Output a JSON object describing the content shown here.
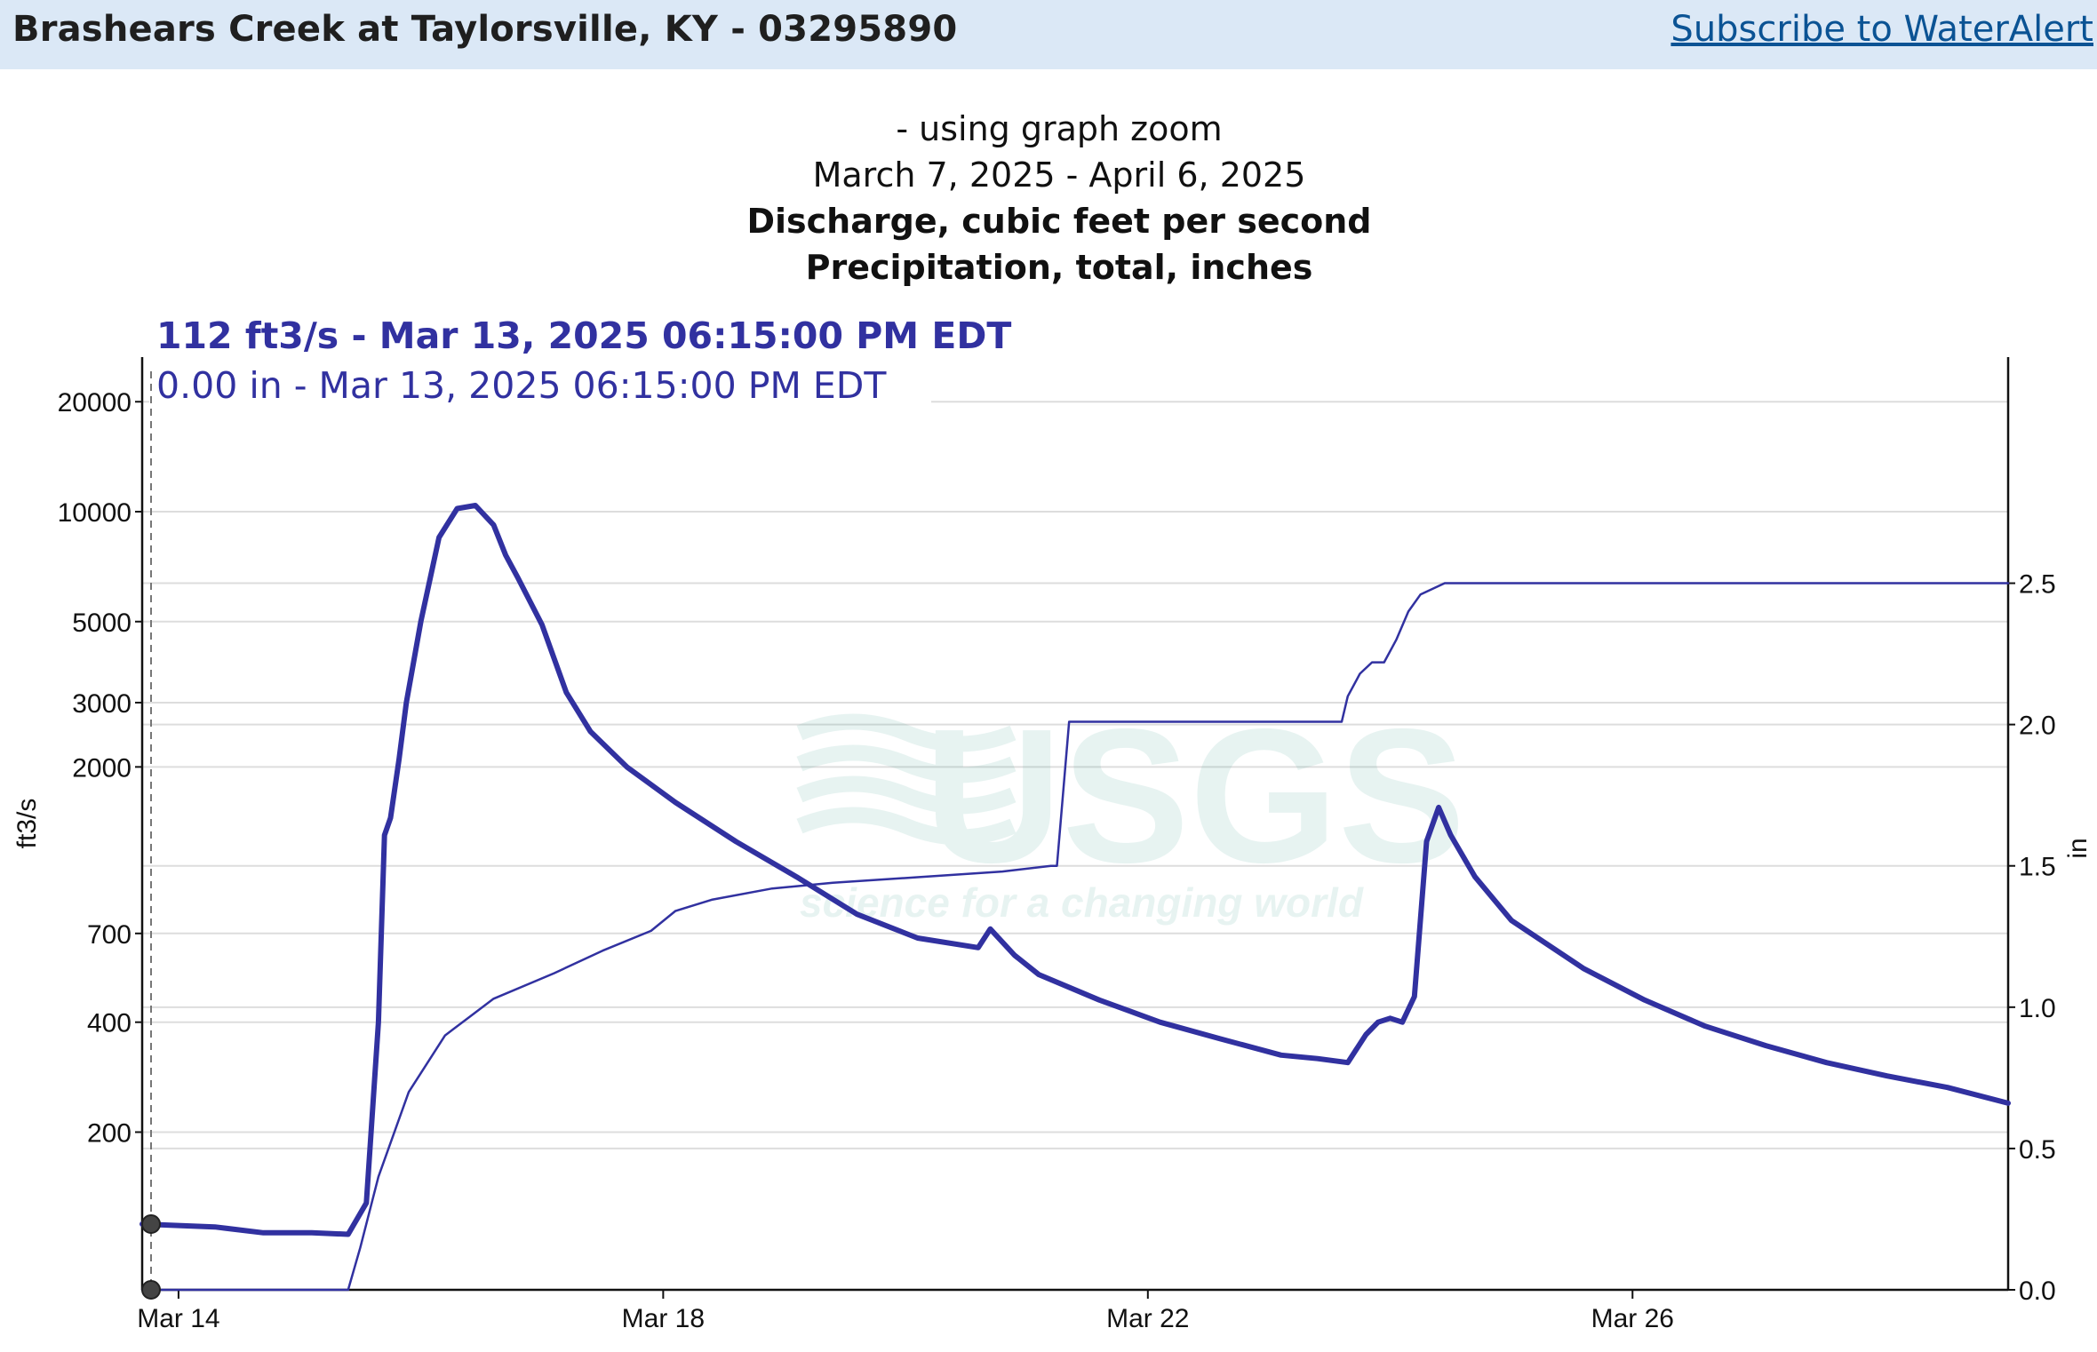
{
  "header": {
    "site_title": "Brashears Creek at Taylorsville, KY - 03295890",
    "subscribe_link": "Subscribe to WaterAlert"
  },
  "chart_data": {
    "type": "line",
    "subtitle": "- using graph zoom",
    "date_range": "March 7, 2025 - April 6, 2025",
    "title_lines": [
      "Discharge, cubic feet per second",
      "Precipitation, total, inches"
    ],
    "tooltip_primary": "112 ft3/s - Mar 13, 2025 06:15:00 PM EDT",
    "tooltip_secondary": "0.00 in - Mar 13, 2025 06:15:00 PM EDT",
    "y_left_label": "ft3/s",
    "y_right_label": "in",
    "y_left_scale": "log",
    "y_left_range": [
      74,
      26500
    ],
    "y_right_range": [
      0.0,
      3.3
    ],
    "x_range": [
      13.6,
      29.0
    ],
    "x_ticks": [
      {
        "label": "Mar 14",
        "value": 13.9
      },
      {
        "label": "Mar 18",
        "value": 17.9
      },
      {
        "label": "Mar 22",
        "value": 21.9
      },
      {
        "label": "Mar 26",
        "value": 25.9
      }
    ],
    "y_left_ticks": [
      {
        "label": "20000",
        "value": 20000
      },
      {
        "label": "10000",
        "value": 10000
      },
      {
        "label": "5000",
        "value": 5000
      },
      {
        "label": "3000",
        "value": 3000
      },
      {
        "label": "2000",
        "value": 2000
      },
      {
        "label": "700",
        "value": 700
      },
      {
        "label": "400",
        "value": 400
      },
      {
        "label": "200",
        "value": 200
      }
    ],
    "y_right_ticks": [
      {
        "label": "2.5",
        "value": 2.5
      },
      {
        "label": "2.0",
        "value": 2.0
      },
      {
        "label": "1.5",
        "value": 1.5
      },
      {
        "label": "1.0",
        "value": 1.0
      },
      {
        "label": "0.5",
        "value": 0.5
      },
      {
        "label": "0.0",
        "value": 0.0
      }
    ],
    "series": [
      {
        "axis": "left",
        "x": [
          13.6,
          14.2,
          14.6,
          15.0,
          15.3,
          15.45,
          15.55,
          15.6,
          15.65,
          15.72,
          15.78,
          15.9,
          16.05,
          16.2,
          16.35,
          16.5,
          16.6,
          16.7,
          16.9,
          17.1,
          17.3,
          17.6,
          18.0,
          18.5,
          19.0,
          19.5,
          20.0,
          20.5,
          20.6,
          20.8,
          21.0,
          21.5,
          22.0,
          22.5,
          23.0,
          23.3,
          23.55,
          23.7,
          23.8,
          23.9,
          24.0,
          24.1,
          24.2,
          24.3,
          24.4,
          24.6,
          24.9,
          25.5,
          26.0,
          26.5,
          27.0,
          27.5,
          28.0,
          28.5,
          29.0
        ],
        "y": [
          112,
          110,
          106,
          106,
          105,
          128,
          400,
          1300,
          1450,
          2100,
          3000,
          5000,
          8500,
          10200,
          10400,
          9200,
          7600,
          6600,
          4900,
          3200,
          2500,
          2000,
          1600,
          1250,
          1000,
          790,
          680,
          640,
          720,
          610,
          540,
          460,
          400,
          360,
          325,
          318,
          310,
          370,
          400,
          410,
          400,
          470,
          1250,
          1550,
          1300,
          1000,
          760,
          560,
          460,
          390,
          345,
          310,
          285,
          265,
          240
        ]
      },
      {
        "axis": "right",
        "x": [
          13.6,
          15.3,
          15.4,
          15.55,
          15.8,
          16.1,
          16.5,
          17.0,
          17.4,
          17.8,
          18.0,
          18.3,
          18.8,
          19.3,
          20.0,
          20.7,
          21.1,
          21.15,
          21.25,
          22.0,
          23.0,
          23.5,
          23.55,
          23.65,
          23.75,
          23.85,
          23.95,
          24.05,
          24.15,
          24.35,
          25.0,
          27.0,
          29.0
        ],
        "y": [
          0.0,
          0.0,
          0.15,
          0.4,
          0.7,
          0.9,
          1.03,
          1.12,
          1.2,
          1.27,
          1.34,
          1.38,
          1.42,
          1.44,
          1.46,
          1.48,
          1.5,
          1.5,
          2.01,
          2.01,
          2.01,
          2.01,
          2.1,
          2.18,
          2.22,
          2.22,
          2.3,
          2.4,
          2.46,
          2.5,
          2.5,
          2.5,
          2.5
        ]
      }
    ],
    "watermark": {
      "logo_text": "USGS",
      "tagline": "science for a changing world"
    },
    "colors": {
      "line": "#3131a0",
      "grid": "#dddddd",
      "watermark": "#4da899",
      "topbar": "#dbe8f6"
    },
    "grid": true
  }
}
